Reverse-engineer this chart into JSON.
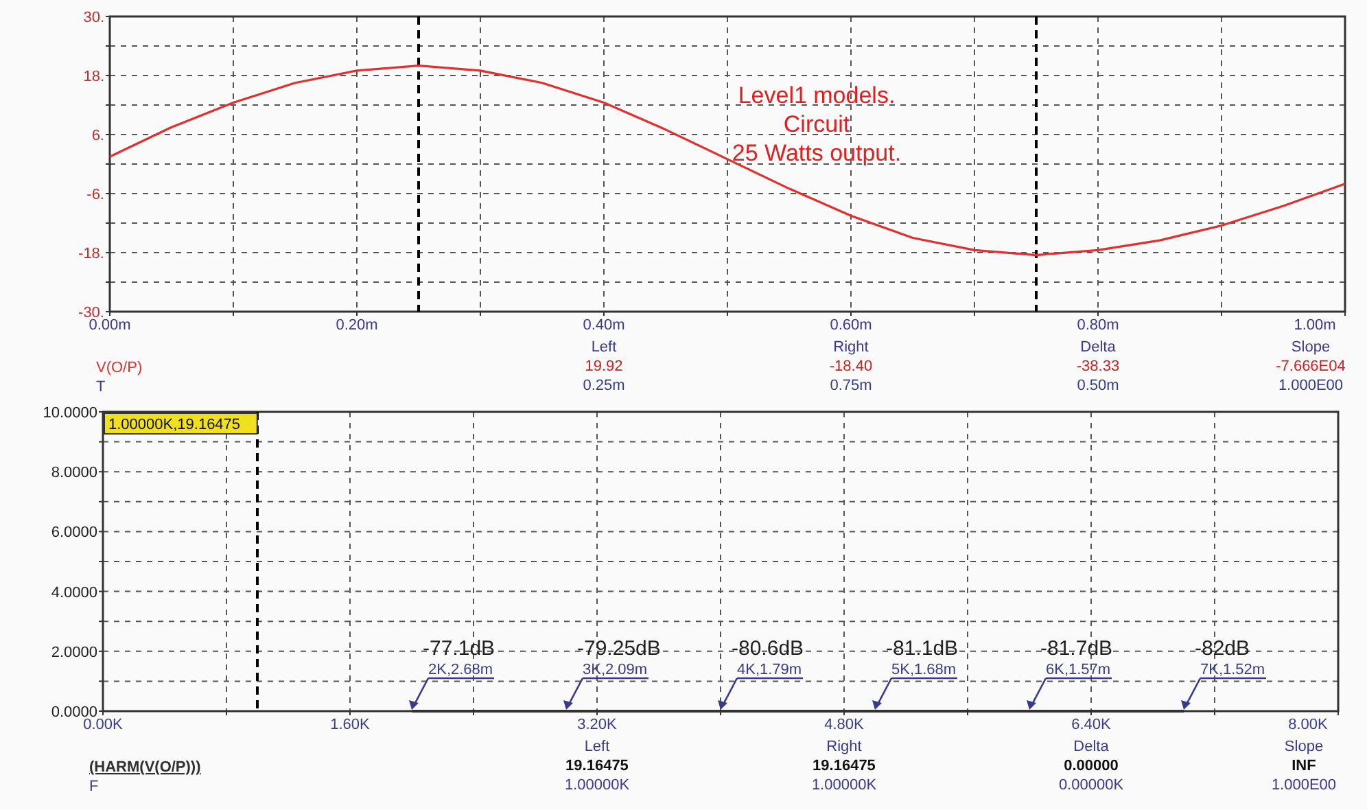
{
  "chart_data": [
    {
      "type": "line",
      "xlabel": "T",
      "legend": "bottom left",
      "x": [
        0,
        0.05,
        0.1,
        0.15,
        0.2,
        0.25,
        0.3,
        0.35,
        0.4,
        0.45,
        0.5,
        0.55,
        0.6,
        0.65,
        0.7,
        0.75,
        0.8,
        0.85,
        0.9,
        0.95,
        1
      ],
      "series": [
        {
          "name": "V(O/P)",
          "color": "#e03030",
          "values": [
            1.5,
            7.5,
            12.5,
            16.5,
            19,
            20,
            19,
            16.5,
            12.5,
            7,
            1,
            -5,
            -10.5,
            -15,
            -17.5,
            -18.5,
            -17.5,
            -15.5,
            -12.5,
            -8.5,
            -4
          ]
        }
      ],
      "xlim": [
        0,
        1
      ],
      "xticks": [
        {
          "value": 0,
          "label": "0.00m"
        },
        {
          "value": 0.1,
          "label": null
        },
        {
          "value": 0.2,
          "label": "0.20m"
        },
        {
          "value": 0.3,
          "label": null
        },
        {
          "value": 0.4,
          "label": "0.40m"
        },
        {
          "value": 0.5,
          "label": null
        },
        {
          "value": 0.6,
          "label": "0.60m"
        },
        {
          "value": 0.7,
          "label": null
        },
        {
          "value": 0.8,
          "label": "0.80m"
        },
        {
          "value": 0.9,
          "label": null
        },
        {
          "value": 1,
          "label": "1.00m"
        }
      ],
      "ylim": [
        -30,
        30
      ],
      "yticks": [
        {
          "value": -30,
          "label": "-30."
        },
        {
          "value": -24,
          "label": null
        },
        {
          "value": -18,
          "label": "-18."
        },
        {
          "value": -12,
          "label": null
        },
        {
          "value": -6,
          "label": "-6."
        },
        {
          "value": 0,
          "label": null
        },
        {
          "value": 6,
          "label": "6."
        },
        {
          "value": 12,
          "label": null
        },
        {
          "value": 18,
          "label": "18."
        },
        {
          "value": 24,
          "label": null
        },
        {
          "value": 30,
          "label": "30."
        }
      ],
      "grid": true,
      "marker": "none",
      "line_style": "solid",
      "ref_lines": [
        {
          "axis": "x",
          "value": 0.25,
          "color": "#000000",
          "line_style": "dashed"
        },
        {
          "axis": "x",
          "value": 0.75,
          "color": "#000000",
          "line_style": "dashed"
        }
      ],
      "annotations": [
        "Level1 models.",
        "Circuit",
        "25 Watts output.",
        "Left",
        "19.92",
        "0.25m",
        "Right",
        "-18.40",
        "0.75m",
        "Delta",
        "-38.33",
        "0.50m",
        "Slope",
        "-7.666E04",
        "1.000E00"
      ]
    },
    {
      "type": "line",
      "xlabel": "F",
      "legend": "bottom left",
      "x": [
        2000,
        3000,
        4000,
        5000,
        6000,
        7000
      ],
      "series": [
        {
          "name": "(HARM(V(O/P)))",
          "color": "#303030",
          "values": [
            0,
            0,
            0,
            0,
            0,
            0
          ]
        }
      ],
      "xlim": [
        0,
        8000
      ],
      "xticks": [
        {
          "value": 0,
          "label": "0.00K"
        },
        {
          "value": 800,
          "label": null
        },
        {
          "value": 1600,
          "label": "1.60K"
        },
        {
          "value": 2400,
          "label": null
        },
        {
          "value": 3200,
          "label": "3.20K"
        },
        {
          "value": 4000,
          "label": null
        },
        {
          "value": 4800,
          "label": "4.80K"
        },
        {
          "value": 5600,
          "label": null
        },
        {
          "value": 6400,
          "label": "6.40K"
        },
        {
          "value": 7200,
          "label": null
        },
        {
          "value": 8000,
          "label": "8.00K"
        }
      ],
      "ylim": [
        0,
        10
      ],
      "yticks": [
        {
          "value": 0,
          "label": "0.0000"
        },
        {
          "value": 1,
          "label": null
        },
        {
          "value": 2,
          "label": "2.0000"
        },
        {
          "value": 3,
          "label": null
        },
        {
          "value": 4,
          "label": "4.0000"
        },
        {
          "value": 5,
          "label": null
        },
        {
          "value": 6,
          "label": "6.0000"
        },
        {
          "value": 7,
          "label": null
        },
        {
          "value": 8,
          "label": "8.0000"
        },
        {
          "value": 9,
          "label": null
        },
        {
          "value": 10,
          "label": "10.0000"
        }
      ],
      "grid": true,
      "marker": "none",
      "line_style": "solid",
      "ref_lines": [
        {
          "axis": "x",
          "value": 1000,
          "label": "1.00000K,19.16475",
          "color": "#000000",
          "line_style": "dashed"
        }
      ],
      "annotations": [
        "-77.1dB",
        "2K,2.68m",
        "-79.25dB",
        "3K,2.09m",
        "-80.6dB",
        "4K,1.79m",
        "-81.1dB",
        "5K,1.68m",
        "-81.7dB",
        "6K,1.57m",
        "-82dB",
        "7K,1.52m",
        "Left",
        "19.16475",
        "1.00000K",
        "Right",
        "19.16475",
        "1.00000K",
        "Delta",
        "0.00000",
        "0.00000K",
        "Slope",
        "INF",
        "1.000E00"
      ]
    }
  ]
}
